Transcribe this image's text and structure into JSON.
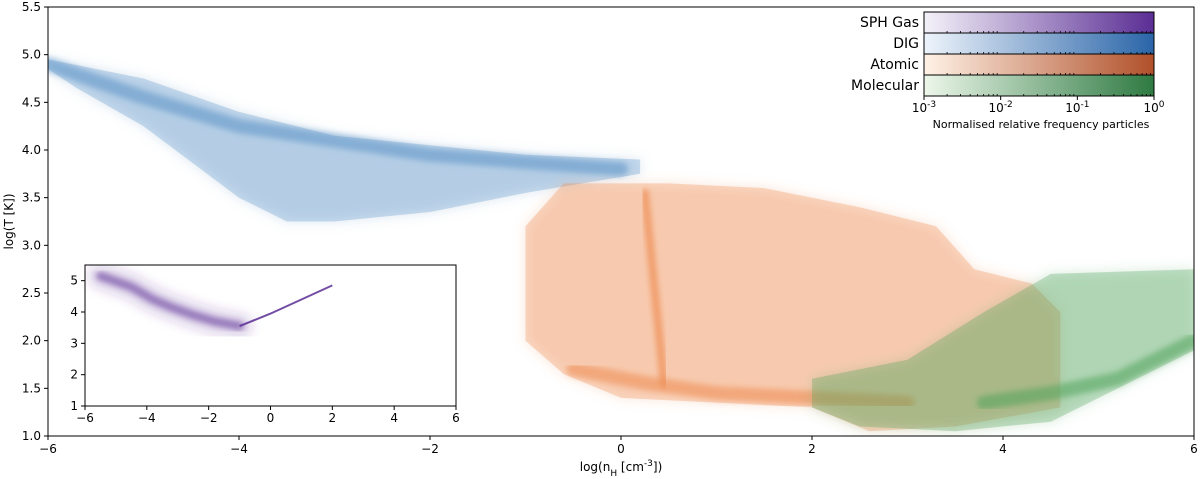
{
  "chart_data": {
    "type": "heatmap",
    "main": {
      "xlabel": "log(n_H [cm^-3])",
      "ylabel": "log(T [K])",
      "xlim": [
        -6,
        6
      ],
      "ylim": [
        1.0,
        5.5
      ],
      "xticks": [
        -6,
        -4,
        -2,
        0,
        2,
        4,
        6
      ],
      "yticks": [
        1.0,
        1.5,
        2.0,
        2.5,
        3.0,
        3.5,
        4.0,
        4.5,
        5.0,
        5.5
      ],
      "series": [
        {
          "name": "DIG",
          "color": "#5b93c7",
          "upper_edge": [
            [
              -6.0,
              4.95
            ],
            [
              -5.0,
              4.75
            ],
            [
              -4.0,
              4.4
            ],
            [
              -3.0,
              4.15
            ],
            [
              -2.0,
              4.05
            ],
            [
              -1.0,
              3.95
            ],
            [
              0.2,
              3.9
            ]
          ],
          "lower_edge": [
            [
              0.2,
              3.75
            ],
            [
              -1.0,
              3.55
            ],
            [
              -2.0,
              3.35
            ],
            [
              -3.0,
              3.25
            ],
            [
              -3.5,
              3.25
            ],
            [
              -4.0,
              3.5
            ],
            [
              -5.0,
              4.25
            ],
            [
              -5.7,
              4.65
            ],
            [
              -6.0,
              4.85
            ]
          ],
          "dense_ridge": [
            [
              -6.0,
              4.9
            ],
            [
              -5.0,
              4.55
            ],
            [
              -4.0,
              4.25
            ],
            [
              -2.0,
              3.95
            ],
            [
              0.0,
              3.8
            ]
          ]
        },
        {
          "name": "Atomic",
          "color": "#ee8a4f",
          "upper_edge": [
            [
              -0.6,
              3.65
            ],
            [
              0.5,
              3.65
            ],
            [
              1.5,
              3.6
            ],
            [
              2.5,
              3.4
            ],
            [
              3.3,
              3.2
            ],
            [
              3.7,
              2.75
            ],
            [
              4.3,
              2.6
            ],
            [
              4.6,
              2.3
            ]
          ],
          "lower_edge": [
            [
              4.6,
              1.3
            ],
            [
              3.5,
              1.1
            ],
            [
              2.6,
              1.05
            ],
            [
              2.0,
              1.3
            ],
            [
              1.0,
              1.35
            ],
            [
              0.0,
              1.4
            ],
            [
              -0.6,
              1.65
            ],
            [
              -1.0,
              2.0
            ],
            [
              -1.0,
              3.2
            ]
          ],
          "dense_ridge": [
            [
              -0.5,
              1.7
            ],
            [
              0.3,
              1.55
            ],
            [
              1.0,
              1.45
            ],
            [
              2.0,
              1.4
            ],
            [
              3.0,
              1.35
            ]
          ],
          "vertical_feature": [
            [
              0.25,
              3.55
            ],
            [
              0.45,
              1.55
            ]
          ]
        },
        {
          "name": "Molecular",
          "color": "#4ea35a",
          "upper_edge": [
            [
              2.0,
              1.6
            ],
            [
              3.0,
              1.8
            ],
            [
              3.8,
              2.3
            ],
            [
              4.5,
              2.7
            ],
            [
              6.0,
              2.75
            ]
          ],
          "lower_edge": [
            [
              6.0,
              1.9
            ],
            [
              5.3,
              1.55
            ],
            [
              4.5,
              1.15
            ],
            [
              3.5,
              1.05
            ],
            [
              2.5,
              1.1
            ],
            [
              2.0,
              1.3
            ]
          ],
          "dense_ridge": [
            [
              3.8,
              1.35
            ],
            [
              4.5,
              1.45
            ],
            [
              5.2,
              1.6
            ],
            [
              6.0,
              2.0
            ]
          ]
        }
      ]
    },
    "legend": {
      "placement": "top-right",
      "entries": [
        {
          "label": "SPH Gas",
          "color_low": "#f4f2f9",
          "color_high": "#5a2d94"
        },
        {
          "label": "DIG",
          "color_low": "#eef4fb",
          "color_high": "#2a65a8"
        },
        {
          "label": "Atomic",
          "color_low": "#fff2e6",
          "color_high": "#b0502a"
        },
        {
          "label": "Molecular",
          "color_low": "#edf7ea",
          "color_high": "#2e7a42"
        }
      ],
      "colorbar": {
        "scale": "log",
        "range": [
          0.001,
          1
        ],
        "tick_labels": [
          "10^-3",
          "10^-2",
          "10^-1",
          "10^0"
        ],
        "caption": "Normalised relative frequency particles"
      }
    },
    "inset": {
      "placement": "bottom-left",
      "xlim": [
        -6,
        6
      ],
      "ylim": [
        1,
        5.5
      ],
      "xticks": [
        -6,
        -4,
        -2,
        0,
        2,
        4,
        6
      ],
      "yticks": [
        1,
        2,
        3,
        4,
        5
      ],
      "series": [
        {
          "name": "SPH Gas",
          "color": "#5a2d94",
          "cloud_points": [
            [
              -5.5,
              5.15
            ],
            [
              -4.5,
              4.8
            ],
            [
              -3.8,
              4.4
            ],
            [
              -3.2,
              4.15
            ],
            [
              -2.5,
              3.9
            ],
            [
              -1.8,
              3.7
            ],
            [
              -1.0,
              3.55
            ]
          ],
          "line_points": [
            [
              -1.0,
              3.55
            ],
            [
              0.0,
              3.95
            ],
            [
              1.0,
              4.4
            ],
            [
              2.0,
              4.85
            ]
          ]
        }
      ]
    }
  }
}
